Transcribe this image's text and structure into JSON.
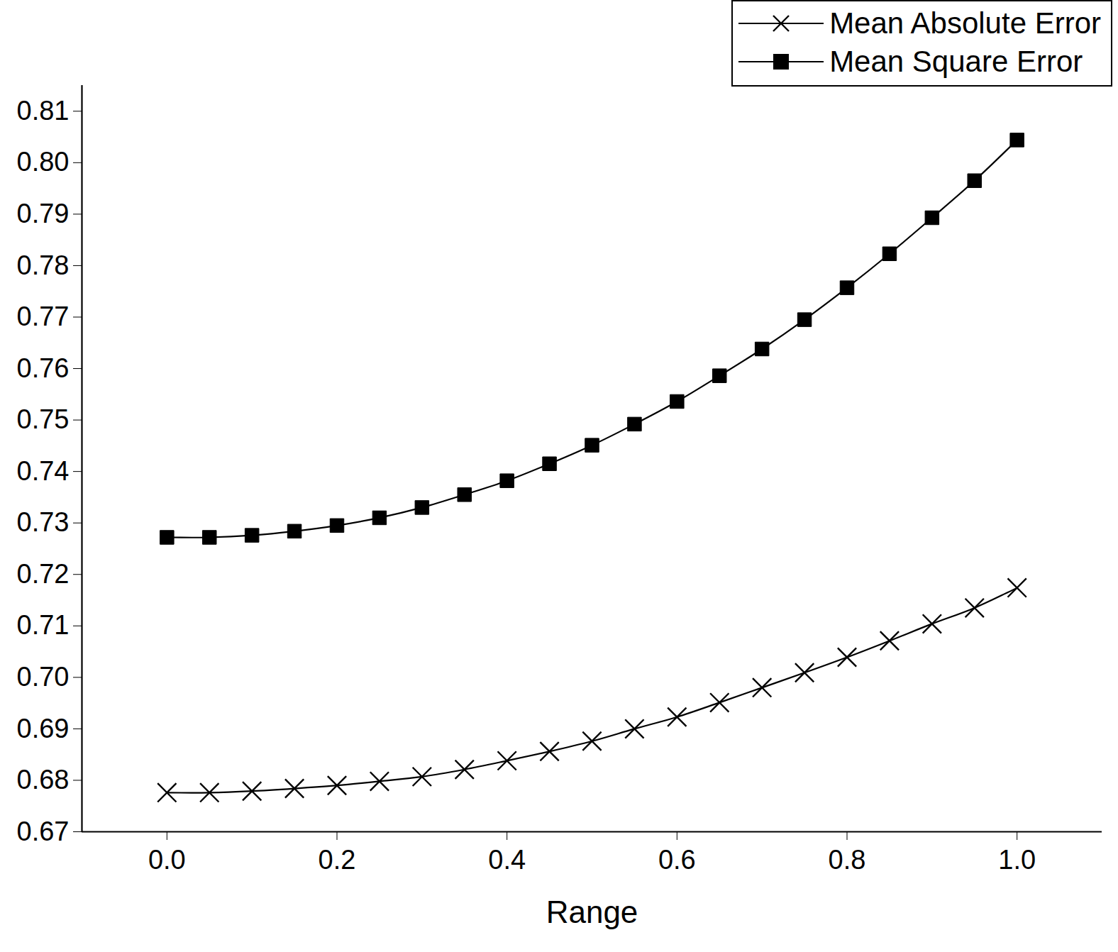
{
  "chart_data": {
    "type": "line",
    "x_label": "Range",
    "x": [
      0,
      0.05,
      0.1,
      0.15,
      0.2,
      0.25,
      0.3,
      0.35,
      0.4,
      0.45,
      0.5,
      0.55,
      0.6,
      0.65,
      0.7,
      0.75,
      0.8,
      0.85,
      0.9,
      0.95,
      1
    ],
    "series": [
      {
        "name": "Mean Absolute Error",
        "color": "#000000",
        "marker": "x",
        "values": [
          0.6776,
          0.6776,
          0.6779,
          0.6784,
          0.679,
          0.6798,
          0.6807,
          0.6821,
          0.6838,
          0.6856,
          0.6876,
          0.69,
          0.6923,
          0.6951,
          0.698,
          0.7009,
          0.7039,
          0.7071,
          0.7104,
          0.7135,
          0.7174
        ]
      },
      {
        "name": "Mean Square Error",
        "color": "#000000",
        "marker": "square",
        "values": [
          0.7272,
          0.7272,
          0.7276,
          0.7284,
          0.7295,
          0.731,
          0.733,
          0.7355,
          0.7382,
          0.7415,
          0.7451,
          0.7492,
          0.7536,
          0.7586,
          0.7638,
          0.7695,
          0.7757,
          0.7823,
          0.7893,
          0.7965,
          0.8044
        ]
      }
    ],
    "xlim": [
      -0.1,
      1.1
    ],
    "xticks": [
      {
        "value": 0,
        "label": "0.0"
      },
      0.2,
      0.4,
      0.6,
      0.8,
      {
        "value": 1,
        "label": "1.0"
      }
    ],
    "ylim": [
      0.67,
      0.815
    ],
    "yticks": [
      0.67,
      0.68,
      0.69,
      {
        "value": 0.7,
        "label": "0.70"
      },
      0.71,
      0.72,
      0.73,
      0.74,
      0.75,
      0.76,
      0.77,
      0.78,
      0.79,
      {
        "value": 0.8,
        "label": "0.80"
      },
      0.81
    ],
    "legend": "top-right",
    "grid": false
  }
}
